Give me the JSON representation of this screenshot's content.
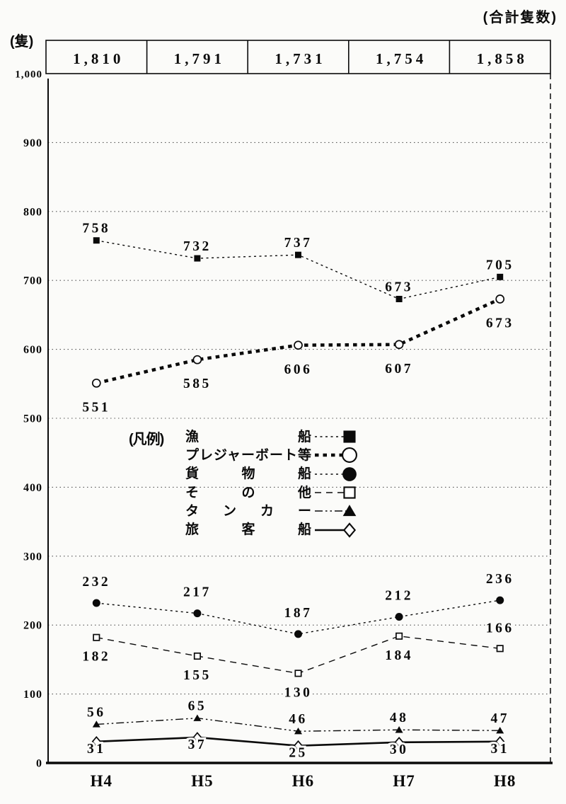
{
  "header": {
    "top_right_label": "(合計隻数)",
    "unit_label": "(隻)"
  },
  "legend": {
    "title": "(凡例)"
  },
  "chart_data": {
    "type": "line",
    "categories": [
      "H4",
      "H5",
      "H6",
      "H7",
      "H8"
    ],
    "totals_per_year": [
      "1,810",
      "1,791",
      "1,731",
      "1,754",
      "1,858"
    ],
    "ylim": [
      0,
      1000
    ],
    "yticks": [
      0,
      100,
      200,
      300,
      400,
      500,
      600,
      700,
      800,
      900,
      1000
    ],
    "ytick_labels": [
      "0",
      "100",
      "200",
      "300",
      "400",
      "500",
      "600",
      "700",
      "800",
      "900",
      "1,000"
    ],
    "grid": "dotted-horizontal",
    "legend_position": "center",
    "series": [
      {
        "key": "fishing-boats",
        "name": "漁船",
        "marker": "filled-square",
        "line": "dotted-fine",
        "values": [
          758,
          732,
          737,
          673,
          705
        ],
        "label_pos": [
          "above",
          "above",
          "above",
          "above",
          "above"
        ]
      },
      {
        "key": "pleasure-boats",
        "name": "プレジャーボート等",
        "marker": "open-circle",
        "line": "dotted-bold",
        "values": [
          551,
          585,
          606,
          607,
          673
        ],
        "label_pos": [
          "below",
          "below",
          "below",
          "below",
          "below"
        ]
      },
      {
        "key": "cargo-ships",
        "name": "貨物船",
        "marker": "filled-circle",
        "line": "dotted-fine",
        "values": [
          232,
          217,
          187,
          212,
          236
        ],
        "label_pos": [
          "above",
          "above",
          "above",
          "above",
          "above"
        ]
      },
      {
        "key": "others",
        "name": "その他",
        "marker": "open-square",
        "line": "dashed",
        "values": [
          182,
          155,
          130,
          184,
          166
        ],
        "label_pos": [
          "below",
          "below",
          "below",
          "below",
          "above"
        ]
      },
      {
        "key": "tankers",
        "name": "タンカー",
        "marker": "filled-triangle",
        "line": "dash-dot",
        "values": [
          56,
          65,
          46,
          48,
          47
        ],
        "label_pos": [
          "above",
          "above",
          "above",
          "above",
          "above"
        ]
      },
      {
        "key": "passenger-ships",
        "name": "旅客船",
        "marker": "open-diamond",
        "line": "solid",
        "values": [
          31,
          37,
          25,
          30,
          31
        ],
        "label_pos": [
          "below",
          "below",
          "below",
          "below",
          "below"
        ]
      }
    ]
  }
}
